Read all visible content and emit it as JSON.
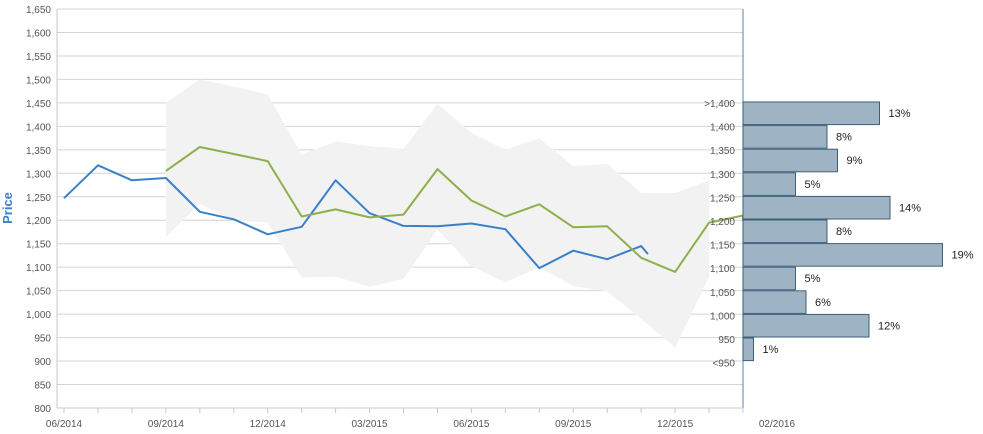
{
  "chart_data": {
    "type": "line",
    "ylabel": "Price",
    "ylim": [
      800,
      1650
    ],
    "yticks": [
      800,
      850,
      900,
      950,
      1000,
      1050,
      1100,
      1150,
      1200,
      1250,
      1300,
      1350,
      1400,
      1450,
      1500,
      1550,
      1600,
      1650
    ],
    "ytick_labels": [
      "800",
      "850",
      "900",
      "950",
      "1,000",
      "1,050",
      "1,100",
      "1,150",
      "1,200",
      "1,250",
      "1,300",
      "1,350",
      "1,400",
      "1,450",
      "1,500",
      "1,550",
      "1,600",
      "1,650"
    ],
    "grid": true,
    "x_categories": [
      "06/2014",
      "07/2014",
      "08/2014",
      "09/2014",
      "10/2014",
      "11/2014",
      "12/2014",
      "01/2015",
      "02/2015",
      "03/2015",
      "04/2015",
      "05/2015",
      "06/2015",
      "07/2015",
      "08/2015",
      "09/2015",
      "10/2015",
      "11/2015",
      "12/2015",
      "01/2016",
      "02/2016"
    ],
    "x_tick_labels": [
      {
        "index": 0,
        "label": "06/2014"
      },
      {
        "index": 3,
        "label": "09/2014"
      },
      {
        "index": 6,
        "label": "12/2014"
      },
      {
        "index": 9,
        "label": "03/2015"
      },
      {
        "index": 12,
        "label": "06/2015"
      },
      {
        "index": 15,
        "label": "09/2015"
      },
      {
        "index": 18,
        "label": "12/2015"
      },
      {
        "index": 21,
        "label": "02/2016"
      }
    ],
    "series": [
      {
        "kind": "line",
        "color": "#3a7fc9",
        "x": [
          0,
          1,
          2,
          3,
          4,
          5,
          6,
          7,
          8,
          9,
          10,
          11,
          12,
          13,
          14,
          15,
          16,
          17,
          17.2
        ],
        "values": [
          1247,
          1317,
          1285,
          1290,
          1218,
          1202,
          1170,
          1186,
          1285,
          1215,
          1188,
          1187,
          1193,
          1181,
          1098,
          1135,
          1117,
          1145,
          1128
        ]
      },
      {
        "kind": "line",
        "color": "#8db04a",
        "x": [
          3,
          4,
          5,
          6,
          7,
          8,
          9,
          10,
          11,
          12,
          13,
          14,
          15,
          16,
          17,
          18,
          19,
          20,
          20
        ],
        "values": [
          1305,
          1356,
          1341,
          1326,
          1208,
          1223,
          1206,
          1212,
          1309,
          1242,
          1208,
          1234,
          1185,
          1187,
          1120,
          1090,
          1195,
          1210,
          1198
        ]
      },
      {
        "kind": "band",
        "color": "#f2f2f2",
        "x": [
          3,
          4,
          5,
          6,
          7,
          8,
          9,
          10,
          11,
          12,
          13,
          14,
          15,
          16,
          17,
          18,
          19
        ],
        "upper": [
          1450,
          1500,
          1485,
          1468,
          1340,
          1368,
          1358,
          1352,
          1448,
          1386,
          1350,
          1375,
          1315,
          1320,
          1258,
          1258,
          1285
        ],
        "lower": [
          1165,
          1235,
          1200,
          1195,
          1078,
          1080,
          1058,
          1075,
          1180,
          1102,
          1068,
          1100,
          1060,
          1048,
          990,
          928,
          1080
        ]
      }
    ],
    "distribution": {
      "type": "bar-horizontal",
      "color": "#9eb4c4",
      "bins": [
        {
          "label": ">1,400",
          "percent": 13,
          "percent_label": "13%"
        },
        {
          "label": "1,400",
          "percent": 8,
          "percent_label": "8%"
        },
        {
          "label": "1,350",
          "percent": 9,
          "percent_label": "9%"
        },
        {
          "label": "1,300",
          "percent": 5,
          "percent_label": "5%"
        },
        {
          "label": "1,250",
          "percent": 14,
          "percent_label": "14%"
        },
        {
          "label": "1,200",
          "percent": 8,
          "percent_label": "8%"
        },
        {
          "label": "1,150",
          "percent": 19,
          "percent_label": "19%"
        },
        {
          "label": "1,100",
          "percent": 5,
          "percent_label": "5%"
        },
        {
          "label": "1,050",
          "percent": 6,
          "percent_label": "6%"
        },
        {
          "label": "1,000",
          "percent": 12,
          "percent_label": "12%"
        },
        {
          "label": "950",
          "percent": 1,
          "percent_label": "1%"
        },
        {
          "label": "<950",
          "percent": 0,
          "percent_label": ""
        }
      ]
    }
  }
}
